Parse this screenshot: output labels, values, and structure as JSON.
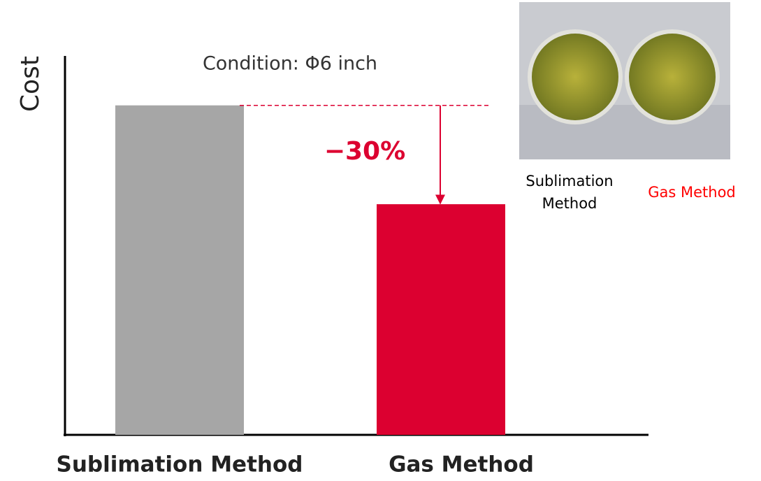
{
  "chart_data": {
    "type": "bar",
    "y_label": "Cost",
    "annotation": "Condition: Φ6 inch",
    "change_label": "−30%",
    "categories": [
      "Sublimation Method",
      "Gas Method"
    ],
    "values": [
      100,
      70
    ],
    "colors": [
      "#a6a6a6",
      "#dc0030"
    ],
    "ylim": [
      0,
      115
    ],
    "photo_captions": [
      [
        "Sublimation",
        "Method"
      ],
      [
        "Gas Method"
      ]
    ],
    "photo_caption_colors": [
      "#000000",
      "#ff0000"
    ]
  }
}
